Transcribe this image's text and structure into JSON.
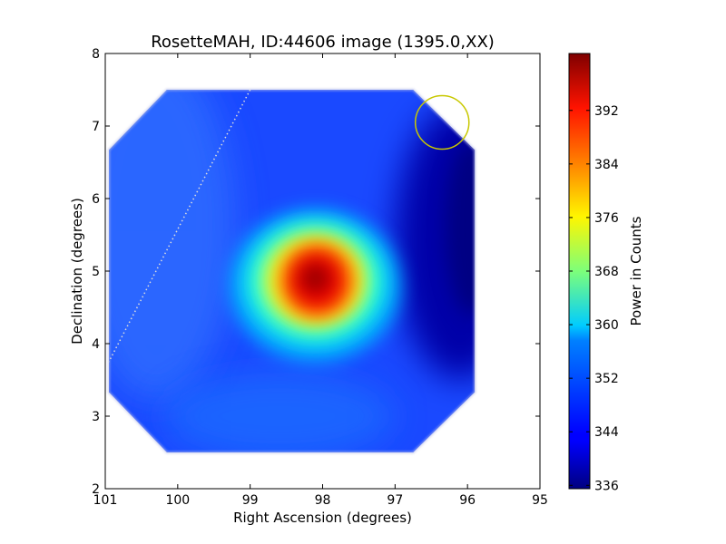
{
  "chart_data": {
    "type": "heatmap",
    "title": "RosetteMAH, ID:44606 image (1395.0,XX)",
    "xlabel": "Right Ascension (degrees)",
    "ylabel": "Declination (degrees)",
    "xlim": [
      101,
      95
    ],
    "ylim": [
      2,
      8
    ],
    "x_ticks": [
      "101",
      "100",
      "99",
      "98",
      "97",
      "96",
      "95"
    ],
    "y_ticks": [
      "2",
      "3",
      "4",
      "5",
      "6",
      "7",
      "8"
    ],
    "colorbar": {
      "label": "Power in Counts",
      "range": [
        335.5,
        400.5
      ],
      "ticks": [
        "336",
        "344",
        "352",
        "360",
        "368",
        "376",
        "384",
        "392"
      ],
      "colormap": "jet"
    },
    "image_footprint": [
      [
        100.15,
        7.5
      ],
      [
        96.75,
        7.5
      ],
      [
        95.9,
        6.67
      ],
      [
        95.9,
        3.33
      ],
      [
        96.75,
        2.5
      ],
      [
        100.15,
        2.5
      ],
      [
        100.95,
        3.33
      ],
      [
        100.95,
        6.67
      ]
    ],
    "peak": {
      "ra": 98.1,
      "dec": 4.85,
      "value": 400
    },
    "circle_marker": {
      "ra": 96.35,
      "dec": 7.05,
      "radius_deg": 0.37,
      "color": "#c8c800"
    },
    "dotted_line": {
      "from": [
        99.0,
        7.5
      ],
      "to": [
        100.95,
        3.75
      ],
      "color": "#dddddd"
    }
  }
}
